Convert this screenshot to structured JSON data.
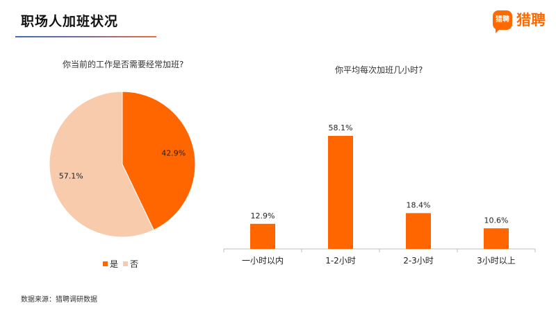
{
  "header": {
    "title": "职场人加班状况"
  },
  "logo": {
    "badge_text": "猎聘",
    "text": "猎聘"
  },
  "footer": {
    "source": "数据来源：猎聘调研数据"
  },
  "colors": {
    "accent": "#ff6600",
    "light": "#f8cbad"
  },
  "chart_data": [
    {
      "type": "pie",
      "title": "你当前的工作是否需要经常加班?",
      "slices": [
        {
          "label": "是",
          "value": 42.9,
          "display": "42.9%",
          "color": "#ff6600"
        },
        {
          "label": "否",
          "value": 57.1,
          "display": "57.1%",
          "color": "#f8cbad"
        }
      ],
      "legend_placement": "bottom"
    },
    {
      "type": "bar",
      "title": "你平均每次加班几小时?",
      "categories": [
        "一小时以内",
        "1-2小时",
        "2-3小时",
        "3小时以上"
      ],
      "values": [
        12.9,
        58.1,
        18.4,
        10.6
      ],
      "labels": [
        "12.9%",
        "58.1%",
        "18.4%",
        "10.6%"
      ],
      "color": "#ff6600",
      "grid": false,
      "ylim": [
        0,
        58.1
      ]
    }
  ]
}
